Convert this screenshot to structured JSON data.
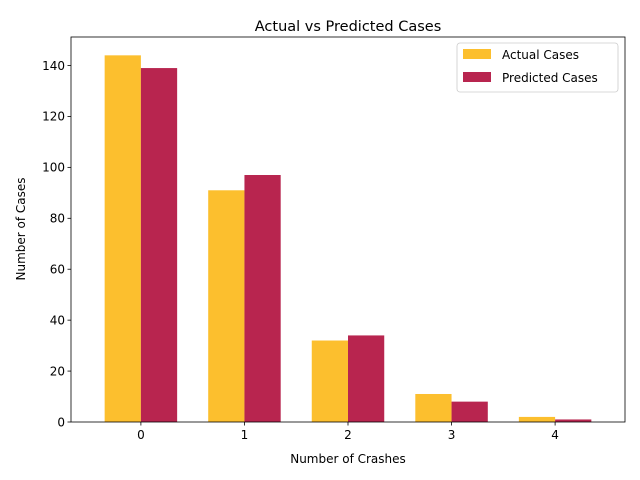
{
  "chart_data": {
    "type": "bar",
    "title": "Actual vs Predicted Cases",
    "xlabel": "Number of Crashes",
    "ylabel": "Number of Cases",
    "categories": [
      "0",
      "1",
      "2",
      "3",
      "4"
    ],
    "series": [
      {
        "name": "Actual Cases",
        "values": [
          144,
          91,
          32,
          11,
          2
        ],
        "color": "#fcbf2e"
      },
      {
        "name": "Predicted Cases",
        "values": [
          139,
          97,
          34,
          8,
          1
        ],
        "color": "#b8254f"
      }
    ],
    "ylim": [
      0,
      151.2
    ],
    "yticks": [
      0,
      20,
      40,
      60,
      80,
      100,
      120,
      140
    ],
    "grid": false,
    "legend": "top-right"
  }
}
